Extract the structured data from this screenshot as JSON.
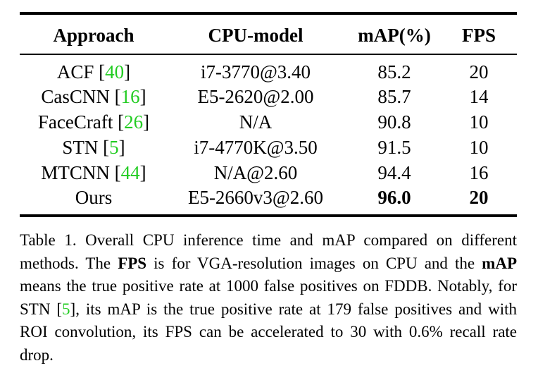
{
  "table": {
    "headers": [
      "Approach",
      "CPU-model",
      "mAP(%)",
      "FPS"
    ],
    "rows": [
      {
        "approach": "ACF",
        "ref": "40",
        "cpu": "i7-3770@3.40",
        "map": "85.2",
        "fps": "20"
      },
      {
        "approach": "CasCNN",
        "ref": "16",
        "cpu": "E5-2620@2.00",
        "map": "85.7",
        "fps": "14"
      },
      {
        "approach": "FaceCraft",
        "ref": "26",
        "cpu": "N/A",
        "map": "90.8",
        "fps": "10"
      },
      {
        "approach": "STN",
        "ref": "5",
        "cpu": "i7-4770K@3.50",
        "map": "91.5",
        "fps": "10"
      },
      {
        "approach": "MTCNN",
        "ref": "44",
        "cpu": "N/A@2.60",
        "map": "94.4",
        "fps": "16"
      },
      {
        "approach": "Ours",
        "ref": "",
        "cpu": "E5-2660v3@2.60",
        "map": "96.0",
        "fps": "20"
      }
    ]
  },
  "caption": {
    "part1": "Table 1. Overall CPU inference time and mAP compared on different methods. The ",
    "bold1": "FPS",
    "part2": " is for VGA-resolution images on CPU and the ",
    "bold2": "mAP",
    "part3": " means the true positive rate at 1000 false positives on FDDB. Notably, for STN [",
    "ref": "5",
    "part4": "], its mAP is the true positive rate at 179 false positives and with ROI convolution, its FPS can be accelerated to 30 with 0.6% recall rate drop."
  },
  "colors": {
    "citation": "#22cc22",
    "text": "#000000"
  }
}
